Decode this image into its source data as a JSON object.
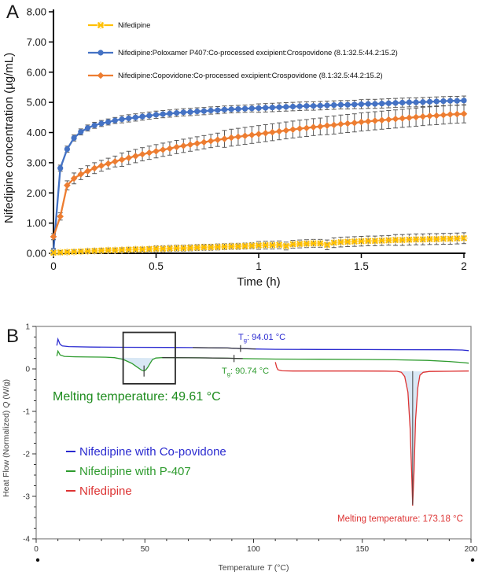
{
  "figure": {
    "panel_a_label": "A",
    "panel_b_label": "B"
  },
  "chart_data": [
    {
      "id": "panel-a",
      "type": "line",
      "title": "",
      "xlabel": "Time (h)",
      "ylabel": "Nifedipine concentration (µg/mL)",
      "xlim": [
        0,
        2
      ],
      "ylim": [
        0,
        8
      ],
      "x_ticks": [
        0,
        0.5,
        1,
        1.5,
        2
      ],
      "x_tick_labels": [
        "0",
        "0.5",
        "1",
        "1.5",
        "2"
      ],
      "y_ticks": [
        0,
        1,
        2,
        3,
        4,
        5,
        6,
        7,
        8
      ],
      "y_tick_labels": [
        "0.00",
        "1.00",
        "2.00",
        "3.00",
        "4.00",
        "5.00",
        "6.00",
        "7.00",
        "8.00"
      ],
      "grid": false,
      "legend_position": "top-left-inside",
      "error_bar_color": "#595959",
      "t_step": 0.0333333,
      "series": [
        {
          "name": "Nifedipine",
          "color": "#FFC000",
          "marker": "x",
          "marker_outline": "#FFDF8C",
          "values": [
            0.02,
            0.03,
            0.04,
            0.05,
            0.06,
            0.07,
            0.08,
            0.09,
            0.1,
            0.1,
            0.11,
            0.12,
            0.13,
            0.13,
            0.14,
            0.15,
            0.15,
            0.16,
            0.17,
            0.17,
            0.18,
            0.19,
            0.2,
            0.2,
            0.21,
            0.22,
            0.23,
            0.23,
            0.24,
            0.25,
            0.26,
            0.27,
            0.27,
            0.28,
            0.24,
            0.3,
            0.31,
            0.32,
            0.33,
            0.33,
            0.28,
            0.35,
            0.37,
            0.38,
            0.39,
            0.4,
            0.41,
            0.41,
            0.42,
            0.43,
            0.44,
            0.44,
            0.45,
            0.46,
            0.46,
            0.47,
            0.47,
            0.48,
            0.48,
            0.49,
            0.5
          ],
          "errors": [
            0.06,
            0.06,
            0.06,
            0.06,
            0.06,
            0.08,
            0.08,
            0.08,
            0.08,
            0.08,
            0.08,
            0.08,
            0.08,
            0.08,
            0.08,
            0.1,
            0.1,
            0.1,
            0.1,
            0.1,
            0.1,
            0.1,
            0.1,
            0.1,
            0.1,
            0.1,
            0.1,
            0.1,
            0.1,
            0.1,
            0.13,
            0.13,
            0.13,
            0.13,
            0.13,
            0.13,
            0.13,
            0.13,
            0.13,
            0.13,
            0.16,
            0.16,
            0.16,
            0.16,
            0.16,
            0.16,
            0.16,
            0.16,
            0.16,
            0.16,
            0.18,
            0.18,
            0.18,
            0.18,
            0.18,
            0.18,
            0.18,
            0.18,
            0.18,
            0.18,
            0.18
          ]
        },
        {
          "name": "Nifedipine:Poloxamer P407:Co-processed excipient:Crospovidone (8.1:32.5:44.2:15.2)",
          "color": "#4472C4",
          "marker": "circle",
          "values": [
            0.08,
            2.82,
            3.45,
            3.82,
            4.02,
            4.15,
            4.24,
            4.3,
            4.35,
            4.4,
            4.44,
            4.47,
            4.5,
            4.53,
            4.56,
            4.59,
            4.61,
            4.63,
            4.65,
            4.67,
            4.68,
            4.7,
            4.71,
            4.73,
            4.74,
            4.76,
            4.77,
            4.78,
            4.79,
            4.8,
            4.81,
            4.82,
            4.83,
            4.84,
            4.85,
            4.86,
            4.87,
            4.88,
            4.88,
            4.89,
            4.9,
            4.91,
            4.92,
            4.92,
            4.93,
            4.94,
            4.95,
            4.95,
            4.96,
            4.97,
            4.98,
            4.99,
            5.0,
            5.0,
            5.01,
            5.02,
            5.03,
            5.04,
            5.05,
            5.05,
            5.06
          ],
          "errors": [
            0.08,
            0.1,
            0.1,
            0.1,
            0.1,
            0.1,
            0.1,
            0.1,
            0.1,
            0.1,
            0.12,
            0.12,
            0.12,
            0.12,
            0.12,
            0.12,
            0.12,
            0.12,
            0.12,
            0.12,
            0.12,
            0.12,
            0.12,
            0.12,
            0.12,
            0.12,
            0.12,
            0.12,
            0.12,
            0.12,
            0.14,
            0.14,
            0.14,
            0.14,
            0.14,
            0.14,
            0.14,
            0.14,
            0.14,
            0.14,
            0.14,
            0.14,
            0.14,
            0.14,
            0.14,
            0.15,
            0.15,
            0.15,
            0.15,
            0.15,
            0.15,
            0.15,
            0.15,
            0.15,
            0.15,
            0.15,
            0.15,
            0.15,
            0.15,
            0.15,
            0.15
          ]
        },
        {
          "name": "Nifedipine:Copovidone:Co-processed excipient:Crospovidone (8.1:32.5:44.2:15.2)",
          "color": "#ED7D31",
          "marker": "diamond",
          "values": [
            0.55,
            1.22,
            2.25,
            2.48,
            2.62,
            2.72,
            2.82,
            2.9,
            2.97,
            3.04,
            3.1,
            3.16,
            3.22,
            3.28,
            3.33,
            3.38,
            3.43,
            3.47,
            3.52,
            3.56,
            3.6,
            3.64,
            3.68,
            3.72,
            3.76,
            3.79,
            3.83,
            3.86,
            3.89,
            3.92,
            3.95,
            3.98,
            4.01,
            4.04,
            4.07,
            4.1,
            4.13,
            4.15,
            4.18,
            4.2,
            4.23,
            4.25,
            4.28,
            4.3,
            4.32,
            4.35,
            4.37,
            4.39,
            4.41,
            4.43,
            4.45,
            4.47,
            4.49,
            4.51,
            4.53,
            4.55,
            4.56,
            4.58,
            4.6,
            4.61,
            4.62
          ],
          "errors": [
            0.1,
            0.12,
            0.15,
            0.18,
            0.18,
            0.18,
            0.18,
            0.18,
            0.18,
            0.18,
            0.22,
            0.22,
            0.22,
            0.22,
            0.22,
            0.22,
            0.22,
            0.22,
            0.22,
            0.22,
            0.22,
            0.22,
            0.22,
            0.22,
            0.22,
            0.28,
            0.28,
            0.28,
            0.28,
            0.28,
            0.28,
            0.28,
            0.28,
            0.28,
            0.28,
            0.28,
            0.28,
            0.28,
            0.28,
            0.28,
            0.3,
            0.3,
            0.3,
            0.3,
            0.3,
            0.3,
            0.3,
            0.3,
            0.3,
            0.3,
            0.3,
            0.3,
            0.3,
            0.3,
            0.3,
            0.3,
            0.3,
            0.3,
            0.3,
            0.3,
            0.3
          ]
        }
      ]
    },
    {
      "id": "panel-b",
      "type": "line",
      "title": "",
      "xlabel_pre": "Temperature",
      "xlabel_var": "T",
      "xlabel_post": "(°C)",
      "ylabel_pre": "Heat Flow (Normalized)",
      "ylabel_var": "Q",
      "ylabel_post": "(W/g)",
      "xlim": [
        0,
        200
      ],
      "ylim": [
        -4,
        1
      ],
      "x_ticks": [
        0,
        50,
        100,
        150,
        200
      ],
      "x_tick_labels": [
        "0",
        "50",
        "100",
        "150",
        "200"
      ],
      "x_minor_step": 10,
      "y_ticks": [
        1,
        0,
        -1,
        -2,
        -3,
        -4
      ],
      "y_tick_labels": [
        "1",
        "0",
        "-1",
        "-2",
        "-3",
        "-4"
      ],
      "y_minor_step": 0.25,
      "grid": false,
      "frame": true,
      "fill_color": "#D9E8F5",
      "series": [
        {
          "name": "Nifedipine with Co-povidone",
          "color": "#2B2BD0",
          "points": [
            [
              9.5,
              0.55
            ],
            [
              10,
              0.7
            ],
            [
              11,
              0.58
            ],
            [
              12,
              0.54
            ],
            [
              15,
              0.525
            ],
            [
              25,
              0.515
            ],
            [
              40,
              0.51
            ],
            [
              60,
              0.505
            ],
            [
              72,
              0.502
            ],
            [
              88,
              0.492
            ],
            [
              94,
              0.48
            ],
            [
              101,
              0.468
            ],
            [
              110,
              0.462
            ],
            [
              130,
              0.458
            ],
            [
              150,
              0.455
            ],
            [
              170,
              0.452
            ],
            [
              190,
              0.45
            ],
            [
              196,
              0.445
            ],
            [
              199,
              0.43
            ]
          ]
        },
        {
          "name": "Nifedipine with P-407",
          "color": "#2E9B2E",
          "points": [
            [
              9.5,
              0.3
            ],
            [
              10,
              0.42
            ],
            [
              11,
              0.33
            ],
            [
              13,
              0.295
            ],
            [
              18,
              0.285
            ],
            [
              25,
              0.28
            ],
            [
              32,
              0.275
            ],
            [
              36,
              0.265
            ],
            [
              40,
              0.225
            ],
            [
              44,
              0.13
            ],
            [
              46.5,
              0.04
            ],
            [
              48.5,
              -0.03
            ],
            [
              49.6,
              -0.05
            ],
            [
              50.5,
              -0.02
            ],
            [
              51.5,
              0.05
            ],
            [
              52.5,
              0.14
            ],
            [
              53.5,
              0.22
            ],
            [
              55,
              0.255
            ],
            [
              58,
              0.266
            ],
            [
              78,
              0.26
            ],
            [
              88,
              0.252
            ],
            [
              95,
              0.242
            ],
            [
              110,
              0.232
            ],
            [
              130,
              0.228
            ],
            [
              150,
              0.222
            ],
            [
              165,
              0.215
            ],
            [
              180,
              0.2
            ],
            [
              190,
              0.175
            ],
            [
              196,
              0.15
            ],
            [
              199,
              0.135
            ]
          ]
        },
        {
          "name": "Nifedipine",
          "color": "#DD3333",
          "points": [
            [
              110,
              0.16
            ],
            [
              110.6,
              0.04
            ],
            [
              111.2,
              -0.02
            ],
            [
              113,
              -0.045
            ],
            [
              118,
              -0.05
            ],
            [
              130,
              -0.05
            ],
            [
              145,
              -0.05
            ],
            [
              160,
              -0.052
            ],
            [
              164,
              -0.055
            ],
            [
              166,
              -0.055
            ],
            [
              168,
              -0.08
            ],
            [
              169.5,
              -0.18
            ],
            [
              171,
              -0.55
            ],
            [
              172,
              -1.4
            ],
            [
              172.8,
              -2.6
            ],
            [
              173.18,
              -3.22
            ],
            [
              173.8,
              -2.4
            ],
            [
              174.5,
              -1.2
            ],
            [
              175.5,
              -0.45
            ],
            [
              176.5,
              -0.15
            ],
            [
              178,
              -0.08
            ],
            [
              181,
              -0.06
            ],
            [
              190,
              -0.055
            ],
            [
              199,
              -0.05
            ]
          ]
        }
      ],
      "fills": [
        [
          [
            36,
            0.265
          ],
          [
            40,
            0.225
          ],
          [
            44,
            0.13
          ],
          [
            46.5,
            0.04
          ],
          [
            48.5,
            -0.03
          ],
          [
            49.6,
            -0.05
          ],
          [
            50.5,
            -0.02
          ],
          [
            51.5,
            0.05
          ],
          [
            52.5,
            0.14
          ],
          [
            53.5,
            0.22
          ],
          [
            55,
            0.255
          ]
        ],
        [
          [
            166,
            -0.055
          ],
          [
            168,
            -0.08
          ],
          [
            169.5,
            -0.18
          ],
          [
            171,
            -0.55
          ],
          [
            172,
            -1.4
          ],
          [
            172.8,
            -2.6
          ],
          [
            173.18,
            -3.22
          ],
          [
            173.8,
            -2.4
          ],
          [
            174.5,
            -1.2
          ],
          [
            175.5,
            -0.45
          ],
          [
            176.5,
            -0.15
          ],
          [
            178,
            -0.08
          ],
          [
            180,
            -0.06
          ]
        ]
      ],
      "black_segments": [
        [
          [
            72,
            0.502
          ],
          [
            88,
            0.492
          ],
          [
            94,
            0.48
          ],
          [
            101,
            0.468
          ]
        ],
        [
          [
            58,
            0.266
          ],
          [
            78,
            0.26
          ],
          [
            88,
            0.252
          ],
          [
            95,
            0.242
          ]
        ]
      ],
      "tg_marks": [
        {
          "x": 94,
          "y_top": 0.56,
          "y_bottom": 0.4
        },
        {
          "x": 91,
          "y_top": 0.33,
          "y_bottom": 0.16
        }
      ],
      "dip_mark": {
        "x": 49.61,
        "y_top": 0.08,
        "y_bottom": -0.18
      },
      "peak_mark": {
        "x": 173.18,
        "y_top": -0.05,
        "y_bottom": -3.2
      },
      "box": {
        "x0": 40,
        "x1": 64,
        "y0": -0.35,
        "y1": 0.86
      },
      "annotations": {
        "tg_blue": {
          "prefix": "T",
          "sub": "g",
          "value": ": 94.01 °C",
          "color": "#2B2BD0"
        },
        "tg_green": {
          "prefix": "T",
          "sub": "g",
          "value": ": 90.74 °C",
          "color": "#2E9B2E"
        },
        "melt_green": {
          "text": "Melting temperature: 49.61 °C",
          "color": "#1E8C1E"
        },
        "melt_red": {
          "text": "Melting temperature: 173.18 °C",
          "color": "#DD3333"
        }
      }
    }
  ]
}
